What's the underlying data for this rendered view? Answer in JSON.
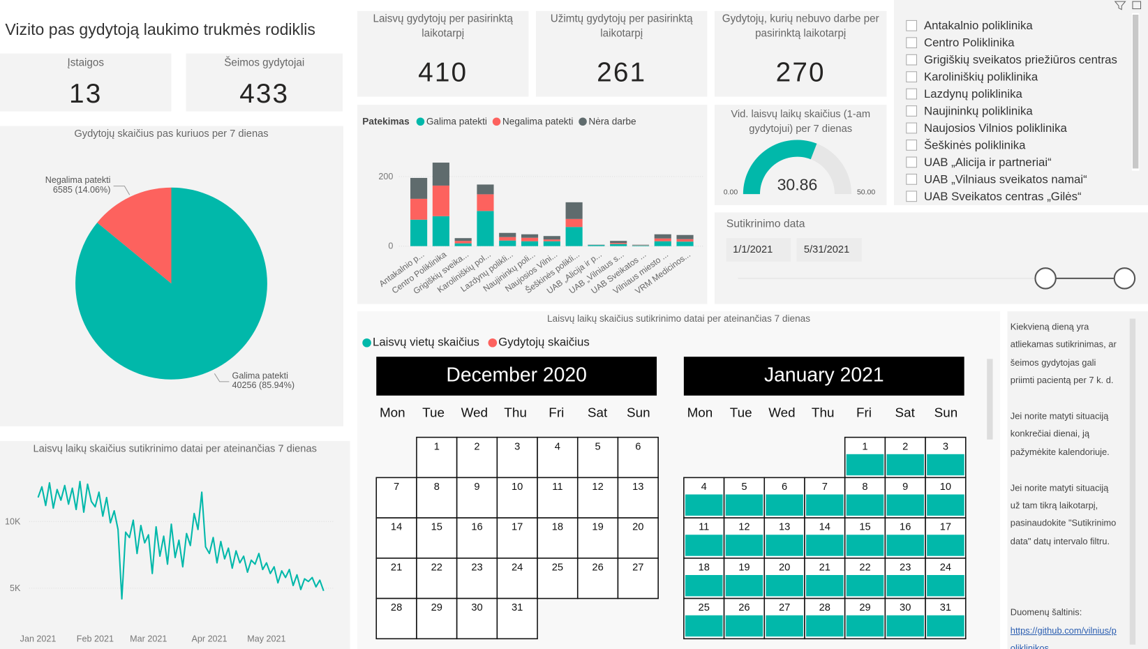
{
  "title": "Vizito pas gydytoją laukimo trukmės rodiklis",
  "kpis": [
    {
      "label": "Įstaigos",
      "value": 13
    },
    {
      "label": "Šeimos gydytojai",
      "value": 433
    },
    {
      "label": "Laisvų gydytojų per pasirinktą laikotarpį",
      "value": 410
    },
    {
      "label": "Užimtų gydytojų per pasirinktą laikotarpį",
      "value": 261
    },
    {
      "label": "Gydytojų, kurių nebuvo darbe per pasirinktą laikotarpį",
      "value": 270
    }
  ],
  "pie": {
    "type": "pie",
    "title": "Gydytojų skaičius pas kuriuos per 7 dienas",
    "categories": [
      "Galima patekti",
      "Negalima patekti"
    ],
    "values": [
      40256,
      6585
    ],
    "value_labels": [
      "40256 (85.94%)",
      "6585 (14.06%)"
    ],
    "colors": [
      "#01B8AA",
      "#FD625E"
    ]
  },
  "bar": {
    "type": "bar",
    "stacked": true,
    "legend_title": "Patekimas",
    "categories": [
      "Antakalnio p...",
      "Centro Poliklinika",
      "Grigiškių sveika...",
      "Karoliniškių pol...",
      "Lazdynų polikli...",
      "Naujininkų poli...",
      "Naujosios Vilni...",
      "Šeškinės polikli...",
      "UAB „Alicija ir p...",
      "UAB „Vilniaus s...",
      "UAB Sveikatos ...",
      "Vilniaus miesto ...",
      "VRM Medicinos..."
    ],
    "series": [
      {
        "name": "Galima patekti",
        "color": "#01B8AA",
        "values": [
          76,
          86,
          8,
          101,
          16,
          14,
          14,
          55,
          3,
          6,
          2,
          14,
          13
        ]
      },
      {
        "name": "Negalima patekti",
        "color": "#FD625E",
        "values": [
          60,
          88,
          7,
          48,
          10,
          10,
          5,
          23,
          0,
          3,
          1,
          8,
          7
        ]
      },
      {
        "name": "Nėra darbe",
        "color": "#5F6B6D",
        "values": [
          60,
          66,
          8,
          28,
          12,
          10,
          10,
          48,
          1,
          6,
          1,
          12,
          12
        ]
      }
    ],
    "ylim": [
      0,
      300
    ],
    "yticks": [
      0,
      200
    ],
    "grid": true
  },
  "line": {
    "type": "line",
    "title": "Laisvų laikų skaičius sutikrinimo datai per ateinančias 7 dienas",
    "color": "#01B8AA",
    "values": [
      11800,
      12600,
      11200,
      12900,
      11000,
      12400,
      11600,
      12700,
      11300,
      12500,
      10900,
      13000,
      10700,
      12800,
      11500,
      11100,
      12200,
      10400,
      11800,
      9900,
      10800,
      9400,
      4200,
      9200,
      8800,
      10100,
      7600,
      9700,
      8400,
      9000,
      6100,
      9600,
      7400,
      8900,
      6800,
      9800,
      7300,
      8600,
      6600,
      9100,
      8200,
      10600,
      9400,
      12200,
      8100,
      7600,
      8800,
      6900,
      8500,
      7200,
      8000,
      6500,
      7800,
      6900,
      7400,
      6200,
      7100,
      6800,
      7600,
      6400,
      6900,
      6100,
      6600,
      5400,
      6300,
      5800,
      6400,
      5200,
      6000,
      4900,
      5700,
      5500,
      5800,
      5100,
      5600,
      4800
    ],
    "xticks": [
      {
        "value": 0,
        "label": "Jan 2021"
      },
      {
        "value": 15,
        "label": "Feb 2021"
      },
      {
        "value": 29,
        "label": "Mar 2021"
      },
      {
        "value": 45,
        "label": "Apr 2021"
      },
      {
        "value": 60,
        "label": "May 2021"
      }
    ],
    "ylim": [
      2000,
      14500
    ],
    "yticks": [
      {
        "value": 5000,
        "label": "5K"
      },
      {
        "value": 10000,
        "label": "10K"
      }
    ],
    "grid": true
  },
  "gauge": {
    "type": "gauge",
    "title": "Vid. laisvų laikų skaičius (1-am gydytojui) per 7 dienas",
    "value": 30.86,
    "min": {
      "value": 0,
      "label": "0.00"
    },
    "max": {
      "value": 50,
      "label": "50.00"
    },
    "color": "#01B8AA",
    "track_color": "#E6E6E6"
  },
  "slicer": {
    "items": [
      "Antakalnio poliklinika",
      "Centro Poliklinika",
      "Grigiškių sveikatos priežiūros centras",
      "Karoliniškių poliklinika",
      "Lazdynų poliklinika",
      "Naujininkų poliklinika",
      "Naujosios Vilnios poliklinika",
      "Šeškinės poliklinika",
      "UAB „Alicija ir partneriai“",
      "UAB „Vilniaus sveikatos namai“",
      "UAB Sveikatos centras „Gilės“"
    ]
  },
  "date_filter": {
    "label": "Sutikrinimo data",
    "start": "1/1/2021",
    "end": "5/31/2021"
  },
  "calendar": {
    "title": "Laisvų laikų skaičius sutikrinimo datai per ateinančias 7 dienas",
    "legend": [
      {
        "name": "Laisvų vietų skaičius",
        "color": "#01B8AA"
      },
      {
        "name": "Gydytojų skaičius",
        "color": "#FD625E"
      }
    ],
    "weekdays": [
      "Mon",
      "Tue",
      "Wed",
      "Thu",
      "Fri",
      "Sat",
      "Sun"
    ],
    "months": [
      {
        "name": "December 2020",
        "highlighted": false,
        "days": [
          1,
          2,
          3,
          4,
          5,
          6,
          7,
          8,
          9,
          10,
          11,
          12,
          13,
          14,
          15,
          16,
          17,
          18,
          19,
          20,
          21,
          22,
          23,
          24,
          25,
          26,
          27,
          28,
          29,
          30,
          31
        ]
      },
      {
        "name": "January 2021",
        "highlighted": true,
        "days": [
          1,
          2,
          3,
          4,
          5,
          6,
          7,
          8,
          9,
          10,
          11,
          12,
          13,
          14,
          15,
          16,
          17,
          18,
          19,
          20,
          21,
          22,
          23,
          24,
          25,
          26,
          27,
          28,
          29,
          30,
          31
        ]
      }
    ],
    "highlight_color": "#01B8AA"
  },
  "note": {
    "paragraphs": [
      "Kiekvieną dieną yra atliekamas sutikrinimas, ar šeimos gydytojas gali priimti pacientą per 7 k. d.",
      "Jei norite matyti situaciją konkrečiai dienai, ją pažymėkite kalendoriuje.",
      "Jei norite matyti situaciją už tam tikrą laikotarpį, pasinaudokite \"Sutikrinimo data\" datų intervalo filtru."
    ],
    "source_label": "Duomenų šaltinis:",
    "source_link": "https://github.com/vilnius/poliklinikos"
  }
}
